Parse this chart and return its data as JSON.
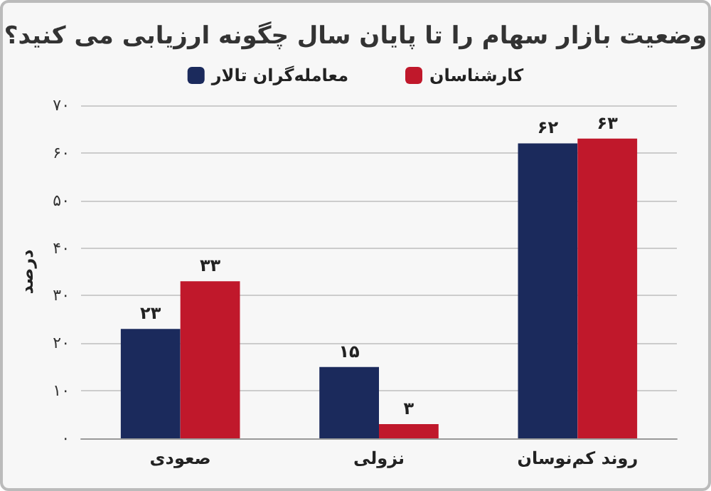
{
  "chart_data": {
    "type": "bar",
    "title": "وضعیت بازار سهام را تا پایان سال چگونه ارزیابی می کنید؟",
    "ylabel": "درصد",
    "categories": [
      "صعودی",
      "نزولی",
      "روند کم‌نوسان"
    ],
    "series": [
      {
        "name": "معامله‌گران تالار",
        "color": "#1b2a5c",
        "values": [
          23,
          15,
          62
        ],
        "value_labels": [
          "۲۳",
          "۱۵",
          "۶۲"
        ]
      },
      {
        "name": "کارشناسان",
        "color": "#c0182b",
        "values": [
          33,
          3,
          63
        ],
        "value_labels": [
          "۳۳",
          "۳",
          "۶۳"
        ]
      }
    ],
    "ylim": [
      0,
      70
    ],
    "yticks": [
      {
        "value": 0,
        "label": "۰"
      },
      {
        "value": 10,
        "label": "۱۰"
      },
      {
        "value": 20,
        "label": "۲۰"
      },
      {
        "value": 30,
        "label": "۳۰"
      },
      {
        "value": 40,
        "label": "۴۰"
      },
      {
        "value": 50,
        "label": "۵۰"
      },
      {
        "value": 60,
        "label": "۶۰"
      },
      {
        "value": 70,
        "label": "۷۰"
      }
    ],
    "grid": "y",
    "legend": "top"
  }
}
